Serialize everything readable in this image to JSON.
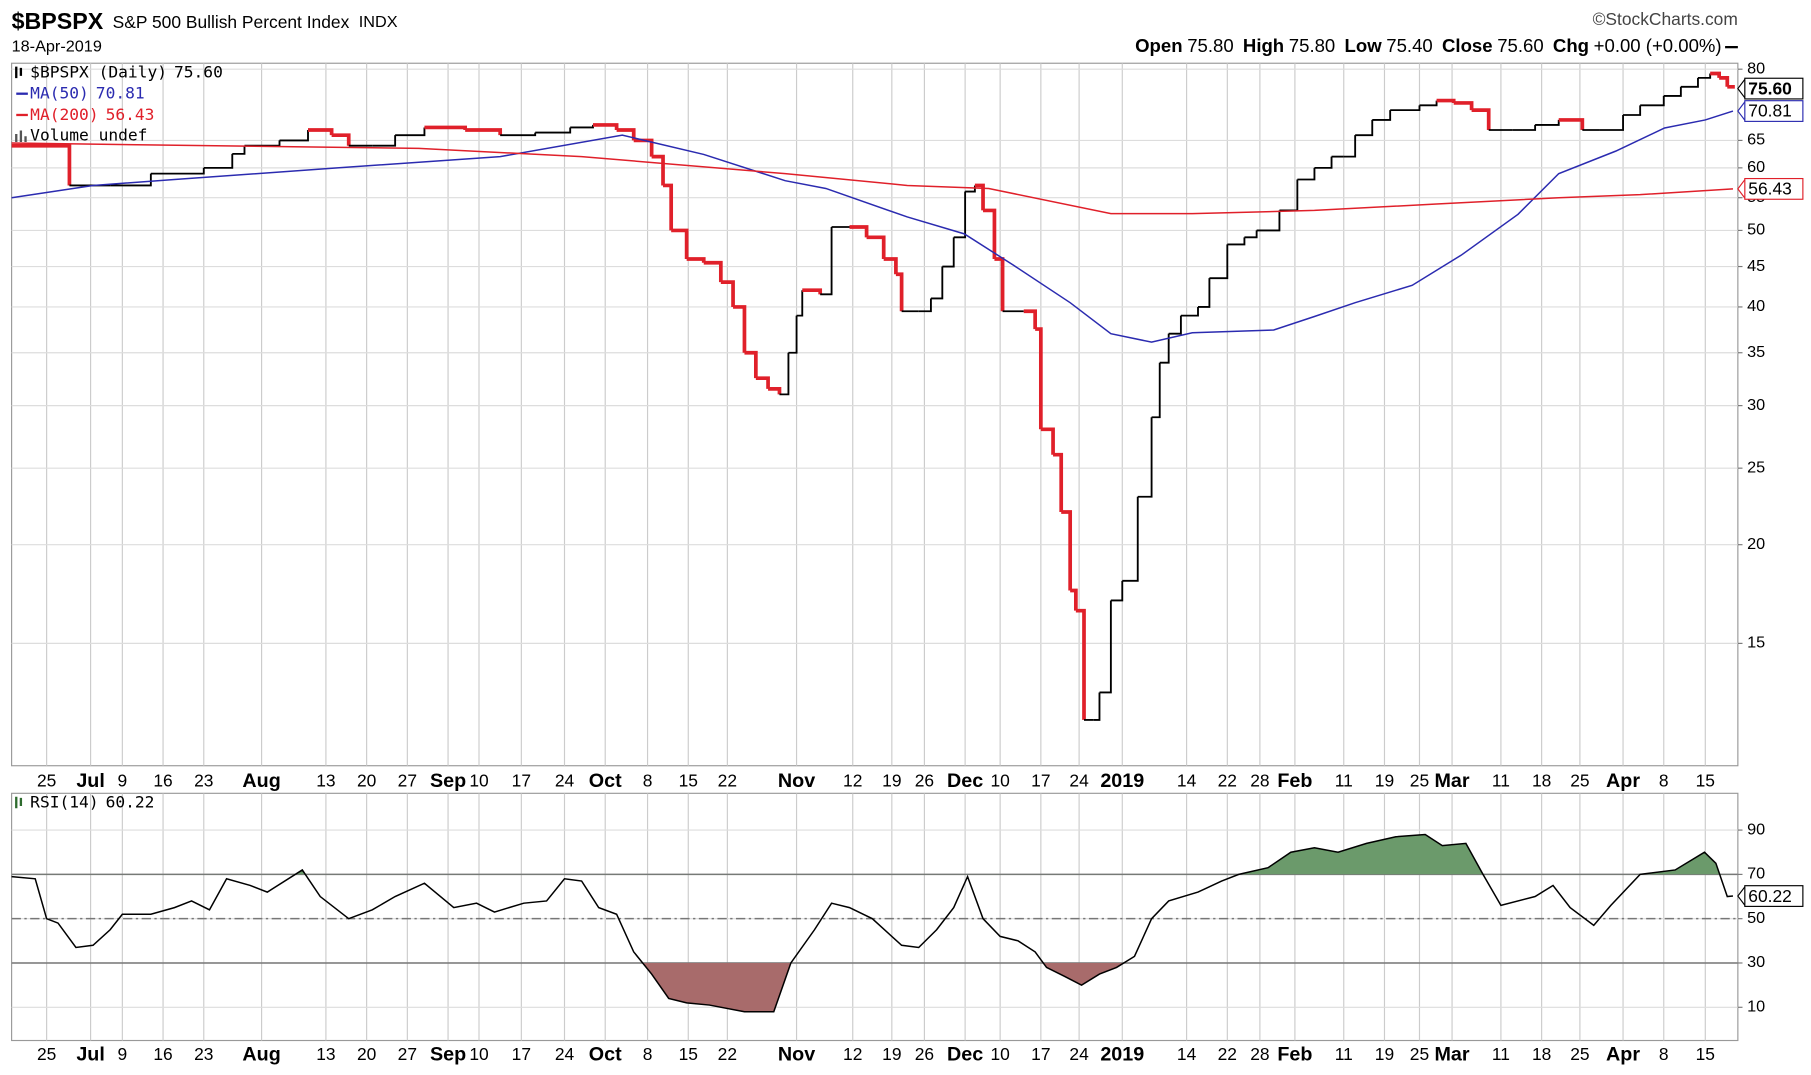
{
  "chart_data": [
    {
      "type": "price",
      "title": "$BPSPX",
      "subtitle": "S&P 500 Bullish Percent Index",
      "exchange": "INDX",
      "date": "18-Apr-2019",
      "source": "©StockCharts.com",
      "quote": [
        {
          "label": "Open",
          "value": 75.8,
          "value_label": "75.80"
        },
        {
          "label": "High",
          "value": 75.8,
          "value_label": "75.80"
        },
        {
          "label": "Low",
          "value": 75.4,
          "value_label": "75.40"
        },
        {
          "label": "Close",
          "value": 75.6,
          "value_label": "75.60"
        },
        {
          "label": "Chg",
          "value": 0,
          "value_label": "+0.00 (+0.00%)"
        }
      ],
      "log_y": true,
      "grid": true,
      "legend": "top-left",
      "legend_extra": "Volume undef",
      "xlim": [
        0,
        212
      ],
      "ylim": [
        10.5,
        81.4
      ],
      "yticks": [
        15,
        20,
        25,
        30,
        35,
        40,
        45,
        50,
        55,
        60,
        65,
        80
      ],
      "xticks": [
        {
          "value": 4.3,
          "label": "25"
        },
        {
          "value": 9.7,
          "label": "Jul"
        },
        {
          "value": 13.6,
          "label": "9"
        },
        {
          "value": 18.6,
          "label": "16"
        },
        {
          "value": 23.6,
          "label": "23"
        },
        {
          "value": 30.7,
          "label": "Aug"
        },
        {
          "value": 38.6,
          "label": "13"
        },
        {
          "value": 43.6,
          "label": "20"
        },
        {
          "value": 48.6,
          "label": "27"
        },
        {
          "value": 53.6,
          "label": "Sep"
        },
        {
          "value": 57.4,
          "label": "10"
        },
        {
          "value": 62.6,
          "label": "17"
        },
        {
          "value": 67.9,
          "label": "24"
        },
        {
          "value": 72.9,
          "label": "Oct"
        },
        {
          "value": 78.1,
          "label": "8"
        },
        {
          "value": 83.1,
          "label": "15"
        },
        {
          "value": 87.9,
          "label": "22"
        },
        {
          "value": 96.4,
          "label": "Nov"
        },
        {
          "value": 103.3,
          "label": "12"
        },
        {
          "value": 108.1,
          "label": "19"
        },
        {
          "value": 112.1,
          "label": "26"
        },
        {
          "value": 117.1,
          "label": "Dec"
        },
        {
          "value": 121.4,
          "label": "10"
        },
        {
          "value": 126.4,
          "label": "17"
        },
        {
          "value": 131.1,
          "label": "24"
        },
        {
          "value": 136.4,
          "label": "2019"
        },
        {
          "value": 144.3,
          "label": "14"
        },
        {
          "value": 149.3,
          "label": "22"
        },
        {
          "value": 153.3,
          "label": "28"
        },
        {
          "value": 157.6,
          "label": "Feb"
        },
        {
          "value": 163.6,
          "label": "11"
        },
        {
          "value": 168.6,
          "label": "19"
        },
        {
          "value": 172.9,
          "label": "25"
        },
        {
          "value": 176.9,
          "label": "Mar"
        },
        {
          "value": 182.9,
          "label": "11"
        },
        {
          "value": 187.9,
          "label": "18"
        },
        {
          "value": 192.6,
          "label": "25"
        },
        {
          "value": 197.9,
          "label": "Apr"
        },
        {
          "value": 202.9,
          "label": "8"
        },
        {
          "value": 208,
          "label": "15"
        }
      ],
      "series": [
        {
          "name": "$BPSPX (Daily)",
          "last_label": "75.60",
          "style": "step",
          "color": "#000000",
          "down_color": "#e0202a",
          "x": [
            0,
            7.1,
            12.1,
            17.1,
            23.6,
            27.1,
            28.6,
            32.9,
            36.4,
            39.3,
            41.4,
            44.3,
            47.1,
            50.7,
            55.7,
            60,
            64.3,
            68.6,
            71.4,
            74.3,
            76.4,
            78.6,
            80,
            81,
            82.9,
            85,
            87.1,
            88.6,
            90,
            91.4,
            92.9,
            94.3,
            95.4,
            96.4,
            97.1,
            99.3,
            100.7,
            102.9,
            105,
            107.1,
            108.6,
            109.3,
            111.4,
            112.9,
            114.3,
            115.7,
            117.1,
            118.3,
            119.3,
            120.7,
            121.7,
            124.3,
            125.7,
            126.4,
            127.9,
            128.9,
            130,
            130.7,
            131.7,
            132.9,
            133.6,
            135,
            136.4,
            138.3,
            140,
            141,
            142.1,
            143.6,
            145.7,
            147.1,
            149.3,
            151.4,
            152.9,
            155.7,
            157.9,
            160,
            162.1,
            163.6,
            165,
            167.1,
            169.3,
            172.9,
            175,
            177.1,
            179.3,
            181.4,
            184.3,
            187.1,
            190,
            192.9,
            195,
            197.9,
            200,
            202.9,
            205,
            207.1,
            208.6,
            209.7,
            210.7,
            211.4
          ],
          "values": [
            64,
            57,
            57,
            59,
            60,
            62.5,
            64,
            65,
            67,
            66,
            64,
            64,
            66,
            67.5,
            67,
            66,
            66.5,
            67.5,
            68,
            67,
            65,
            62,
            57,
            50,
            46,
            45.5,
            43,
            40,
            35,
            32.5,
            31.5,
            31,
            35,
            39,
            42,
            41.5,
            50.5,
            50.5,
            49,
            46,
            44,
            39.5,
            39.5,
            41,
            45,
            49,
            56,
            57,
            53,
            46,
            39.5,
            39.5,
            37.5,
            28,
            26,
            22,
            17.5,
            16.5,
            12,
            12,
            13,
            17,
            18,
            23,
            29,
            34,
            37,
            39,
            40,
            43.5,
            48,
            49,
            50,
            53,
            58,
            60,
            62,
            62,
            66,
            69,
            71,
            72,
            73,
            72.5,
            71,
            67,
            67,
            68,
            69,
            67,
            67,
            70,
            72,
            74,
            76,
            78,
            79,
            78,
            76,
            75.6
          ]
        },
        {
          "name": "MA(50)",
          "last_label": "70.81",
          "style": "line",
          "color": "#2b2bb0",
          "x": [
            0,
            10,
            20,
            40,
            60,
            75,
            85,
            95,
            100,
            110,
            117,
            123,
            130,
            135,
            140,
            145,
            155,
            160,
            165,
            172,
            178,
            185,
            190,
            197,
            203,
            208,
            211.4
          ],
          "values": [
            55,
            57,
            58,
            60,
            62,
            66,
            62.4,
            57.8,
            56.5,
            52,
            49.5,
            45.2,
            40.5,
            37,
            36.1,
            37.1,
            37.4,
            38.9,
            40.5,
            42.6,
            46.5,
            52.4,
            59,
            63,
            67.4,
            69,
            70.81
          ]
        },
        {
          "name": "MA(200)",
          "last_label": "56.43",
          "style": "line",
          "color": "#e0202a",
          "x": [
            0,
            50,
            70,
            95,
            110,
            120,
            135,
            145,
            160,
            175,
            190,
            200,
            211.4
          ],
          "values": [
            64.5,
            63.5,
            62,
            59,
            57,
            56.5,
            52.5,
            52.5,
            53,
            54,
            55,
            55.5,
            56.43
          ]
        }
      ]
    },
    {
      "type": "rsi",
      "grid": true,
      "legend": "top-left",
      "xlim": [
        0,
        212
      ],
      "ylim": [
        -5,
        106.6
      ],
      "yticks": [
        10,
        30,
        50,
        70,
        90
      ],
      "levels": [
        {
          "value": 30,
          "style": "solid"
        },
        {
          "value": 50,
          "style": "dashdot"
        },
        {
          "value": 70,
          "style": "solid"
        }
      ],
      "overbought_fill": "#6b9a6b",
      "oversold_fill": "#a86b6b",
      "xticks": [
        {
          "value": 4.3,
          "label": "25"
        },
        {
          "value": 9.7,
          "label": "Jul"
        },
        {
          "value": 13.6,
          "label": "9"
        },
        {
          "value": 18.6,
          "label": "16"
        },
        {
          "value": 23.6,
          "label": "23"
        },
        {
          "value": 30.7,
          "label": "Aug"
        },
        {
          "value": 38.6,
          "label": "13"
        },
        {
          "value": 43.6,
          "label": "20"
        },
        {
          "value": 48.6,
          "label": "27"
        },
        {
          "value": 53.6,
          "label": "Sep"
        },
        {
          "value": 57.4,
          "label": "10"
        },
        {
          "value": 62.6,
          "label": "17"
        },
        {
          "value": 67.9,
          "label": "24"
        },
        {
          "value": 72.9,
          "label": "Oct"
        },
        {
          "value": 78.1,
          "label": "8"
        },
        {
          "value": 83.1,
          "label": "15"
        },
        {
          "value": 87.9,
          "label": "22"
        },
        {
          "value": 96.4,
          "label": "Nov"
        },
        {
          "value": 103.3,
          "label": "12"
        },
        {
          "value": 108.1,
          "label": "19"
        },
        {
          "value": 112.1,
          "label": "26"
        },
        {
          "value": 117.1,
          "label": "Dec"
        },
        {
          "value": 121.4,
          "label": "10"
        },
        {
          "value": 126.4,
          "label": "17"
        },
        {
          "value": 131.1,
          "label": "24"
        },
        {
          "value": 136.4,
          "label": "2019"
        },
        {
          "value": 144.3,
          "label": "14"
        },
        {
          "value": 149.3,
          "label": "22"
        },
        {
          "value": 153.3,
          "label": "28"
        },
        {
          "value": 157.6,
          "label": "Feb"
        },
        {
          "value": 163.6,
          "label": "11"
        },
        {
          "value": 168.6,
          "label": "19"
        },
        {
          "value": 172.9,
          "label": "25"
        },
        {
          "value": 176.9,
          "label": "Mar"
        },
        {
          "value": 182.9,
          "label": "11"
        },
        {
          "value": 187.9,
          "label": "18"
        },
        {
          "value": 192.6,
          "label": "25"
        },
        {
          "value": 197.9,
          "label": "Apr"
        },
        {
          "value": 202.9,
          "label": "8"
        },
        {
          "value": 208,
          "label": "15"
        }
      ],
      "series": [
        {
          "name": "RSI(14)",
          "last_label": "60.22",
          "style": "line",
          "color": "#000000",
          "x": [
            0,
            2.9,
            4.3,
            5.7,
            7.9,
            10,
            12.1,
            13.6,
            17.1,
            20,
            22.1,
            24.3,
            26.4,
            29.3,
            31.4,
            35.7,
            37.9,
            41.4,
            44.3,
            47.1,
            50.7,
            54.3,
            57.1,
            59.3,
            62.9,
            65.7,
            67.9,
            70,
            72.1,
            74.3,
            76.4,
            78.6,
            80.7,
            82.9,
            85.7,
            90,
            93.6,
            95.7,
            98.6,
            100.7,
            102.9,
            105.7,
            109.3,
            111.4,
            113.6,
            115.7,
            117.4,
            119.3,
            121.4,
            123.6,
            125.7,
            127.1,
            129.3,
            131.4,
            133.6,
            135.7,
            137.9,
            140,
            142.1,
            145.7,
            148.6,
            150.7,
            154.3,
            157.1,
            160,
            162.9,
            166.4,
            170,
            173.6,
            175.7,
            178.6,
            180.7,
            182.9,
            187.1,
            189.3,
            191.4,
            194.3,
            196.4,
            200,
            204.3,
            207.9,
            209.3,
            210.7,
            211.4
          ],
          "values": [
            69,
            68,
            50,
            48,
            37,
            38,
            45,
            52,
            52,
            55,
            58,
            54,
            68,
            65,
            62,
            72,
            60,
            50,
            54,
            60,
            66,
            55,
            57,
            53,
            57,
            58,
            68,
            67,
            55,
            52,
            35,
            25,
            14,
            12,
            11,
            8,
            8,
            30,
            45,
            57,
            55,
            50,
            38,
            37,
            45,
            55,
            69,
            50,
            42,
            40,
            35,
            28,
            24,
            20,
            25,
            28,
            33,
            50,
            58,
            62,
            67,
            70,
            73,
            80,
            82,
            80,
            84,
            87,
            88,
            83,
            84,
            70,
            56,
            60,
            65,
            55,
            47,
            56,
            70,
            72,
            80,
            75,
            60,
            60.22
          ]
        }
      ]
    }
  ]
}
